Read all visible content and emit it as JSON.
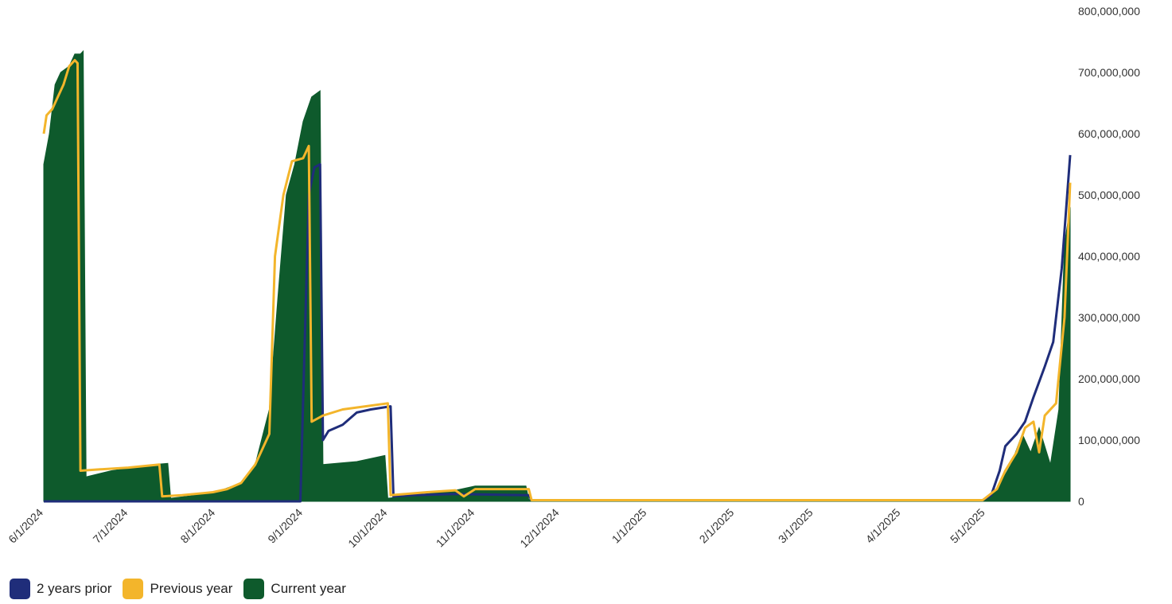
{
  "chart_data": {
    "type": "area",
    "x_ticks": [
      "6/1/2024",
      "7/1/2024",
      "8/1/2024",
      "9/1/2024",
      "10/1/2024",
      "11/1/2024",
      "12/1/2024",
      "1/1/2025",
      "2/1/2025",
      "3/1/2025",
      "4/1/2025",
      "5/1/2025"
    ],
    "y_ticks": [
      "800,000,000",
      "700,000,000",
      "600,000,000",
      "500,000,000",
      "400,000,000",
      "300,000,000",
      "200,000,000",
      "100,000,000",
      "0"
    ],
    "x_range": [
      "2024-06-01",
      "2025-05-31"
    ],
    "ylim": [
      0,
      800000000
    ],
    "y_axis_side": "right",
    "grid": false,
    "legend_position": "bottom-left",
    "series": [
      {
        "name": "2 years prior",
        "color": "#1f2d7a",
        "style": "line",
        "points": [
          [
            "2024-06-01",
            0
          ],
          [
            "2024-08-31",
            0
          ],
          [
            "2024-09-03",
            500000000
          ],
          [
            "2024-09-05",
            545000000
          ],
          [
            "2024-09-07",
            550000000
          ],
          [
            "2024-09-08",
            100000000
          ],
          [
            "2024-09-10",
            115000000
          ],
          [
            "2024-09-15",
            125000000
          ],
          [
            "2024-09-20",
            145000000
          ],
          [
            "2024-09-25",
            150000000
          ],
          [
            "2024-10-02",
            155000000
          ],
          [
            "2024-10-03",
            8000000
          ],
          [
            "2024-10-10",
            10000000
          ],
          [
            "2024-10-25",
            12000000
          ],
          [
            "2024-11-20",
            10000000
          ],
          [
            "2024-11-21",
            2000000
          ],
          [
            "2025-04-30",
            2000000
          ],
          [
            "2025-05-03",
            10000000
          ],
          [
            "2025-05-06",
            50000000
          ],
          [
            "2025-05-08",
            90000000
          ],
          [
            "2025-05-12",
            110000000
          ],
          [
            "2025-05-15",
            130000000
          ],
          [
            "2025-05-18",
            170000000
          ],
          [
            "2025-05-22",
            220000000
          ],
          [
            "2025-05-25",
            260000000
          ],
          [
            "2025-05-28",
            380000000
          ],
          [
            "2025-05-31",
            565000000
          ]
        ]
      },
      {
        "name": "Previous year",
        "color": "#f3b52b",
        "style": "line",
        "points": [
          [
            "2024-06-01",
            600000000
          ],
          [
            "2024-06-02",
            630000000
          ],
          [
            "2024-06-04",
            640000000
          ],
          [
            "2024-06-06",
            660000000
          ],
          [
            "2024-06-08",
            680000000
          ],
          [
            "2024-06-10",
            710000000
          ],
          [
            "2024-06-12",
            720000000
          ],
          [
            "2024-06-13",
            715000000
          ],
          [
            "2024-06-14",
            50000000
          ],
          [
            "2024-06-20",
            52000000
          ],
          [
            "2024-07-01",
            55000000
          ],
          [
            "2024-07-12",
            60000000
          ],
          [
            "2024-07-13",
            8000000
          ],
          [
            "2024-07-20",
            10000000
          ],
          [
            "2024-07-31",
            15000000
          ],
          [
            "2024-08-05",
            20000000
          ],
          [
            "2024-08-10",
            30000000
          ],
          [
            "2024-08-15",
            60000000
          ],
          [
            "2024-08-20",
            110000000
          ],
          [
            "2024-08-22",
            400000000
          ],
          [
            "2024-08-25",
            500000000
          ],
          [
            "2024-08-28",
            555000000
          ],
          [
            "2024-09-01",
            560000000
          ],
          [
            "2024-09-03",
            580000000
          ],
          [
            "2024-09-04",
            130000000
          ],
          [
            "2024-09-08",
            140000000
          ],
          [
            "2024-09-15",
            150000000
          ],
          [
            "2024-10-01",
            160000000
          ],
          [
            "2024-10-02",
            10000000
          ],
          [
            "2024-10-15",
            15000000
          ],
          [
            "2024-10-25",
            18000000
          ],
          [
            "2024-10-28",
            8000000
          ],
          [
            "2024-11-01",
            20000000
          ],
          [
            "2024-11-20",
            20000000
          ],
          [
            "2024-11-21",
            2000000
          ],
          [
            "2025-04-30",
            2000000
          ],
          [
            "2025-05-05",
            20000000
          ],
          [
            "2025-05-08",
            50000000
          ],
          [
            "2025-05-12",
            80000000
          ],
          [
            "2025-05-15",
            120000000
          ],
          [
            "2025-05-18",
            130000000
          ],
          [
            "2025-05-20",
            80000000
          ],
          [
            "2025-05-22",
            140000000
          ],
          [
            "2025-05-26",
            160000000
          ],
          [
            "2025-05-29",
            300000000
          ],
          [
            "2025-05-31",
            520000000
          ]
        ]
      },
      {
        "name": "Current year",
        "color": "#0e5a2c",
        "style": "area",
        "points": [
          [
            "2024-06-01",
            550000000
          ],
          [
            "2024-06-03",
            600000000
          ],
          [
            "2024-06-05",
            680000000
          ],
          [
            "2024-06-07",
            700000000
          ],
          [
            "2024-06-10",
            710000000
          ],
          [
            "2024-06-12",
            730000000
          ],
          [
            "2024-06-14",
            730000000
          ],
          [
            "2024-06-15",
            735000000
          ],
          [
            "2024-06-16",
            40000000
          ],
          [
            "2024-06-25",
            50000000
          ],
          [
            "2024-07-10",
            60000000
          ],
          [
            "2024-07-15",
            62000000
          ],
          [
            "2024-07-16",
            5000000
          ],
          [
            "2024-07-25",
            10000000
          ],
          [
            "2024-08-01",
            15000000
          ],
          [
            "2024-08-10",
            30000000
          ],
          [
            "2024-08-15",
            60000000
          ],
          [
            "2024-08-20",
            150000000
          ],
          [
            "2024-08-23",
            330000000
          ],
          [
            "2024-08-26",
            500000000
          ],
          [
            "2024-08-29",
            550000000
          ],
          [
            "2024-09-01",
            620000000
          ],
          [
            "2024-09-04",
            660000000
          ],
          [
            "2024-09-07",
            670000000
          ],
          [
            "2024-09-08",
            60000000
          ],
          [
            "2024-09-20",
            65000000
          ],
          [
            "2024-09-30",
            75000000
          ],
          [
            "2024-10-01",
            5000000
          ],
          [
            "2024-10-10",
            10000000
          ],
          [
            "2024-10-20",
            15000000
          ],
          [
            "2024-10-25",
            18000000
          ],
          [
            "2024-11-01",
            25000000
          ],
          [
            "2024-11-19",
            25000000
          ],
          [
            "2024-11-20",
            3000000
          ],
          [
            "2025-04-30",
            3000000
          ],
          [
            "2025-05-05",
            20000000
          ],
          [
            "2025-05-10",
            60000000
          ],
          [
            "2025-05-14",
            110000000
          ],
          [
            "2025-05-17",
            80000000
          ],
          [
            "2025-05-20",
            120000000
          ],
          [
            "2025-05-24",
            60000000
          ],
          [
            "2025-05-27",
            150000000
          ],
          [
            "2025-05-29",
            420000000
          ],
          [
            "2025-05-31",
            480000000
          ]
        ]
      }
    ]
  }
}
